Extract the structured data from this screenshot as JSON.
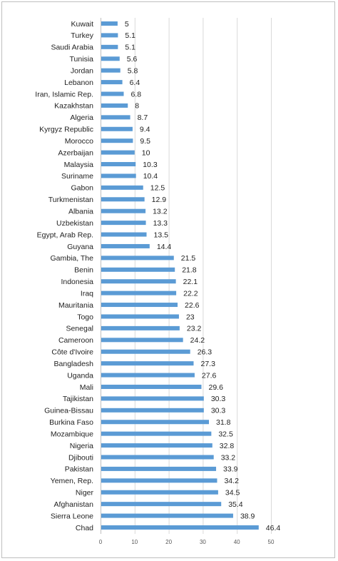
{
  "chart_data": {
    "type": "bar",
    "orientation": "horizontal",
    "categories": [
      "Kuwait",
      "Turkey",
      "Saudi Arabia",
      "Tunisia",
      "Jordan",
      "Lebanon",
      "Iran, Islamic Rep.",
      "Kazakhstan",
      "Algeria",
      "Kyrgyz Republic",
      "Morocco",
      "Azerbaijan",
      "Malaysia",
      "Suriname",
      "Gabon",
      "Turkmenistan",
      "Albania",
      "Uzbekistan",
      "Egypt, Arab Rep.",
      "Guyana",
      "Gambia, The",
      "Benin",
      "Indonesia",
      "Iraq",
      "Mauritania",
      "Togo",
      "Senegal",
      "Cameroon",
      "Côte d'Ivoire",
      "Bangladesh",
      "Uganda",
      "Mali",
      "Tajikistan",
      "Guinea-Bissau",
      "Burkina Faso",
      "Mozambique",
      "Nigeria",
      "Djibouti",
      "Pakistan",
      "Yemen, Rep.",
      "Niger",
      "Afghanistan",
      "Sierra Leone",
      "Chad"
    ],
    "values": [
      5,
      5.1,
      5.1,
      5.6,
      5.8,
      6.4,
      6.8,
      8,
      8.7,
      9.4,
      9.5,
      10,
      10.3,
      10.4,
      12.5,
      12.9,
      13.2,
      13.3,
      13.5,
      14.4,
      21.5,
      21.8,
      22.1,
      22.2,
      22.6,
      23,
      23.2,
      24.2,
      26.3,
      27.3,
      27.6,
      29.6,
      30.3,
      30.3,
      31.8,
      32.5,
      32.8,
      33.2,
      33.9,
      34.2,
      34.5,
      35.4,
      38.9,
      46.4
    ],
    "value_labels": [
      "5",
      "5.1",
      "5.1",
      "5.6",
      "5.8",
      "6.4",
      "6.8",
      "8",
      "8.7",
      "9.4",
      "9.5",
      "10",
      "10.3",
      "10.4",
      "12.5",
      "12.9",
      "13.2",
      "13.3",
      "13.5",
      "14.4",
      "21.5",
      "21.8",
      "22.1",
      "22.2",
      "22.6",
      "23",
      "23.2",
      "24.2",
      "26.3",
      "27.3",
      "27.6",
      "29.6",
      "30.3",
      "30.3",
      "31.8",
      "32.5",
      "32.8",
      "33.2",
      "33.9",
      "34.2",
      "34.5",
      "35.4",
      "38.9",
      "46.4"
    ],
    "xlim": [
      0,
      50
    ],
    "xticks": [
      "0",
      "10",
      "20",
      "30",
      "40",
      "50"
    ],
    "grid": true,
    "legend": false,
    "title": "",
    "xlabel": "",
    "ylabel": "",
    "bar_color": "#5b9bd5"
  }
}
